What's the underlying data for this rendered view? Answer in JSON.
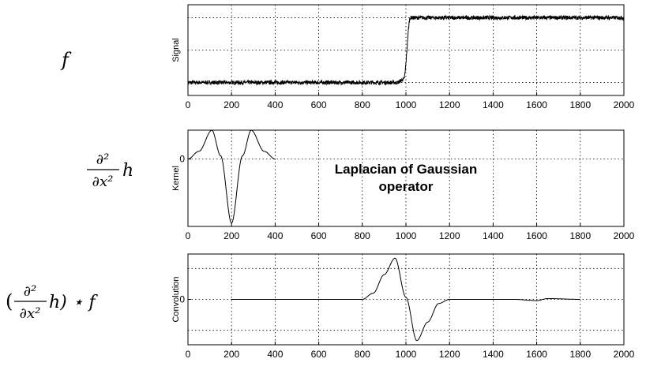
{
  "formulas": {
    "signal": "f",
    "kernel_numerator": "∂²",
    "kernel_denominator": "∂x²",
    "kernel_var": "h",
    "conv_open": "(",
    "conv_close": "h) ⋆ f"
  },
  "chart_data": [
    {
      "type": "line",
      "id": "signal",
      "ylabel": "Signal",
      "xlim": [
        0,
        2000
      ],
      "x_ticks": [
        0,
        200,
        400,
        600,
        800,
        1000,
        1200,
        1400,
        1600,
        1800,
        2000
      ],
      "y_ticks": [],
      "ylim": [
        -0.2,
        1.2
      ],
      "grid": true,
      "noise": 0.03,
      "series": [
        {
          "x": [
            0,
            960,
            990,
            1020,
            2000
          ],
          "y": [
            0,
            0,
            0.05,
            1,
            1
          ]
        }
      ]
    },
    {
      "type": "line",
      "id": "kernel",
      "ylabel": "Kernel",
      "xlim": [
        0,
        2000
      ],
      "x_ticks": [
        0,
        200,
        400,
        600,
        800,
        1000,
        1200,
        1400,
        1600,
        1800,
        2000
      ],
      "y_ticks": [
        0
      ],
      "ylim": [
        -1.05,
        0.45
      ],
      "grid": true,
      "annotation": [
        "Laplacian of Gaussian",
        "operator"
      ],
      "series": [
        {
          "x": [
            0,
            50,
            110,
            150,
            200,
            250,
            290,
            350,
            400
          ],
          "y": [
            0,
            0.12,
            0.45,
            0.05,
            -1,
            0.05,
            0.45,
            0.12,
            0
          ]
        }
      ]
    },
    {
      "type": "line",
      "id": "convolution",
      "ylabel": "Convolution",
      "xlim": [
        0,
        2000
      ],
      "x_ticks": [
        0,
        200,
        400,
        600,
        800,
        1000,
        1200,
        1400,
        1600,
        1800,
        2000
      ],
      "y_ticks": [
        0
      ],
      "ylim": [
        -1.1,
        1.1
      ],
      "grid": true,
      "series": [
        {
          "x": [
            200,
            800,
            850,
            900,
            950,
            1000,
            1050,
            1100,
            1150,
            1200,
            1500,
            1600,
            1650,
            1800
          ],
          "y": [
            0,
            0,
            0.15,
            0.6,
            1,
            0.05,
            -1,
            -0.55,
            -0.1,
            0,
            0,
            -0.03,
            0.02,
            0
          ]
        }
      ]
    }
  ]
}
